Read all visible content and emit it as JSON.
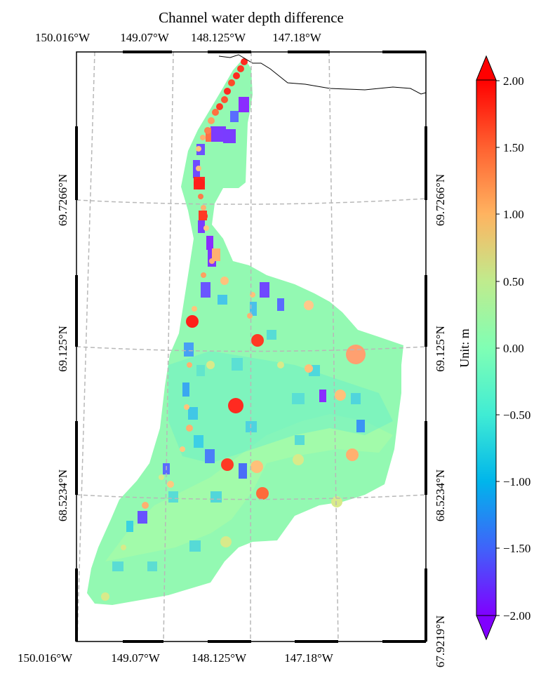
{
  "title": "Channel water depth difference",
  "map": {
    "top_lon_labels": [
      "150.016°W",
      "149.07°W",
      "148.125°W",
      "147.18°W"
    ],
    "bottom_lon_labels": [
      "150.016°W",
      "149.07°W",
      "148.125°W",
      "147.18°W"
    ],
    "left_lat_labels": [
      "69.7266°N",
      "69.125°N",
      "68.5234°N"
    ],
    "right_lat_labels": [
      "69.7266°N",
      "69.125°N",
      "68.5234°N",
      "67.9219°N"
    ],
    "gridlines": "dashed gray",
    "colormap": "rainbow",
    "ocean_background": "#ffffff"
  },
  "colorbar": {
    "label": "Unit: m",
    "ticks": [
      "2.00",
      "1.50",
      "1.00",
      "0.50",
      "0.00",
      "−0.50",
      "−1.00",
      "−1.50",
      "−2.00"
    ],
    "vmin": -2.0,
    "vmax": 2.0,
    "extend": "both",
    "colors": [
      "#8000ff",
      "#3b5ffb",
      "#00b4ec",
      "#3ff4c3",
      "#80ffb4",
      "#c1f48d",
      "#ffb462",
      "#ff5f30",
      "#ff0000"
    ]
  }
}
